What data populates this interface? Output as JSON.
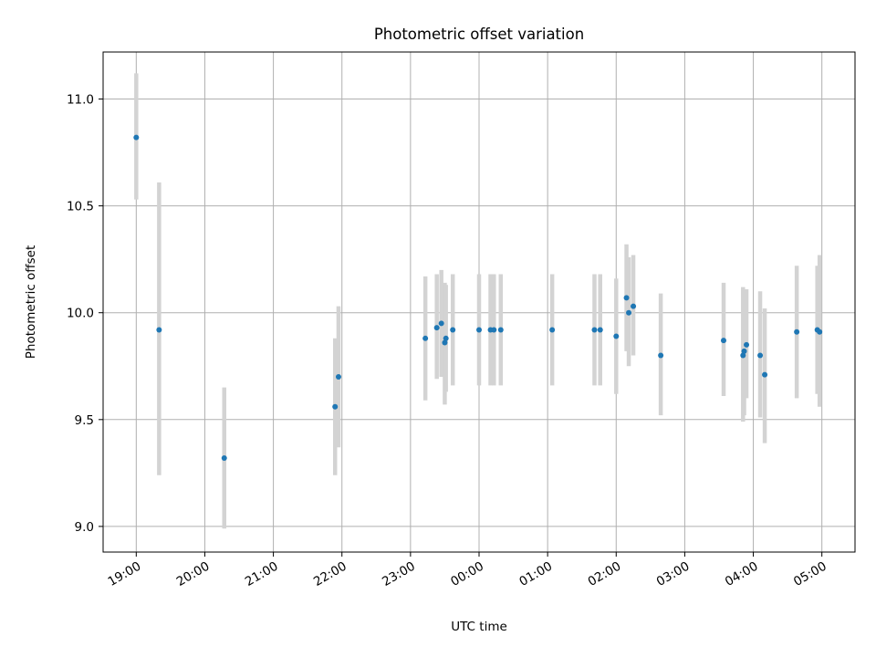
{
  "chart_data": {
    "type": "scatter",
    "title": "Photometric offset variation",
    "xlabel": "UTC time",
    "ylabel": "Photometric offset",
    "x_ticks": [
      "19:00",
      "20:00",
      "21:00",
      "22:00",
      "23:00",
      "00:00",
      "01:00",
      "02:00",
      "03:00",
      "04:00",
      "05:00"
    ],
    "y_ticks": [
      "9.0",
      "9.5",
      "10.0",
      "10.5",
      "11.0"
    ],
    "ylim": [
      8.88,
      11.22
    ],
    "xlim": [
      "18:31",
      "05:29"
    ],
    "grid": true,
    "marker_color": "#1f77b4",
    "errorbar_color": "#d3d3d3",
    "points": [
      {
        "time": "19:00",
        "y": 10.82,
        "err_low": 10.53,
        "err_high": 11.12
      },
      {
        "time": "19:20",
        "y": 9.92,
        "err_low": 9.24,
        "err_high": 10.61
      },
      {
        "time": "20:17",
        "y": 9.32,
        "err_low": 8.99,
        "err_high": 9.65
      },
      {
        "time": "21:54",
        "y": 9.56,
        "err_low": 9.24,
        "err_high": 9.88
      },
      {
        "time": "21:57",
        "y": 9.7,
        "err_low": 9.37,
        "err_high": 10.03
      },
      {
        "time": "23:13",
        "y": 9.88,
        "err_low": 9.59,
        "err_high": 10.17
      },
      {
        "time": "23:23",
        "y": 9.93,
        "err_low": 9.69,
        "err_high": 10.18
      },
      {
        "time": "23:27",
        "y": 9.95,
        "err_low": 9.7,
        "err_high": 10.2
      },
      {
        "time": "23:30",
        "y": 9.86,
        "err_low": 9.57,
        "err_high": 10.14
      },
      {
        "time": "23:31",
        "y": 9.88,
        "err_low": 9.63,
        "err_high": 10.13
      },
      {
        "time": "23:37",
        "y": 9.92,
        "err_low": 9.66,
        "err_high": 10.18
      },
      {
        "time": "00:00",
        "y": 9.92,
        "err_low": 9.66,
        "err_high": 10.18
      },
      {
        "time": "00:10",
        "y": 9.92,
        "err_low": 9.66,
        "err_high": 10.18
      },
      {
        "time": "00:13",
        "y": 9.92,
        "err_low": 9.66,
        "err_high": 10.18
      },
      {
        "time": "00:19",
        "y": 9.92,
        "err_low": 9.66,
        "err_high": 10.18
      },
      {
        "time": "01:04",
        "y": 9.92,
        "err_low": 9.66,
        "err_high": 10.18
      },
      {
        "time": "01:41",
        "y": 9.92,
        "err_low": 9.66,
        "err_high": 10.18
      },
      {
        "time": "01:46",
        "y": 9.92,
        "err_low": 9.66,
        "err_high": 10.18
      },
      {
        "time": "02:00",
        "y": 9.89,
        "err_low": 9.62,
        "err_high": 10.16
      },
      {
        "time": "02:09",
        "y": 10.07,
        "err_low": 9.82,
        "err_high": 10.32
      },
      {
        "time": "02:11",
        "y": 10.0,
        "err_low": 9.75,
        "err_high": 10.26
      },
      {
        "time": "02:15",
        "y": 10.03,
        "err_low": 9.8,
        "err_high": 10.27
      },
      {
        "time": "02:39",
        "y": 9.8,
        "err_low": 9.52,
        "err_high": 10.09
      },
      {
        "time": "03:34",
        "y": 9.87,
        "err_low": 9.61,
        "err_high": 10.14
      },
      {
        "time": "03:51",
        "y": 9.8,
        "err_low": 9.49,
        "err_high": 10.12
      },
      {
        "time": "03:52",
        "y": 9.82,
        "err_low": 9.52,
        "err_high": 10.11
      },
      {
        "time": "03:54",
        "y": 9.85,
        "err_low": 9.6,
        "err_high": 10.11
      },
      {
        "time": "04:06",
        "y": 9.8,
        "err_low": 9.51,
        "err_high": 10.1
      },
      {
        "time": "04:10",
        "y": 9.71,
        "err_low": 9.39,
        "err_high": 10.02
      },
      {
        "time": "04:38",
        "y": 9.91,
        "err_low": 9.6,
        "err_high": 10.22
      },
      {
        "time": "04:56",
        "y": 9.92,
        "err_low": 9.62,
        "err_high": 10.22
      },
      {
        "time": "04:58",
        "y": 9.91,
        "err_low": 9.56,
        "err_high": 10.27
      }
    ]
  }
}
